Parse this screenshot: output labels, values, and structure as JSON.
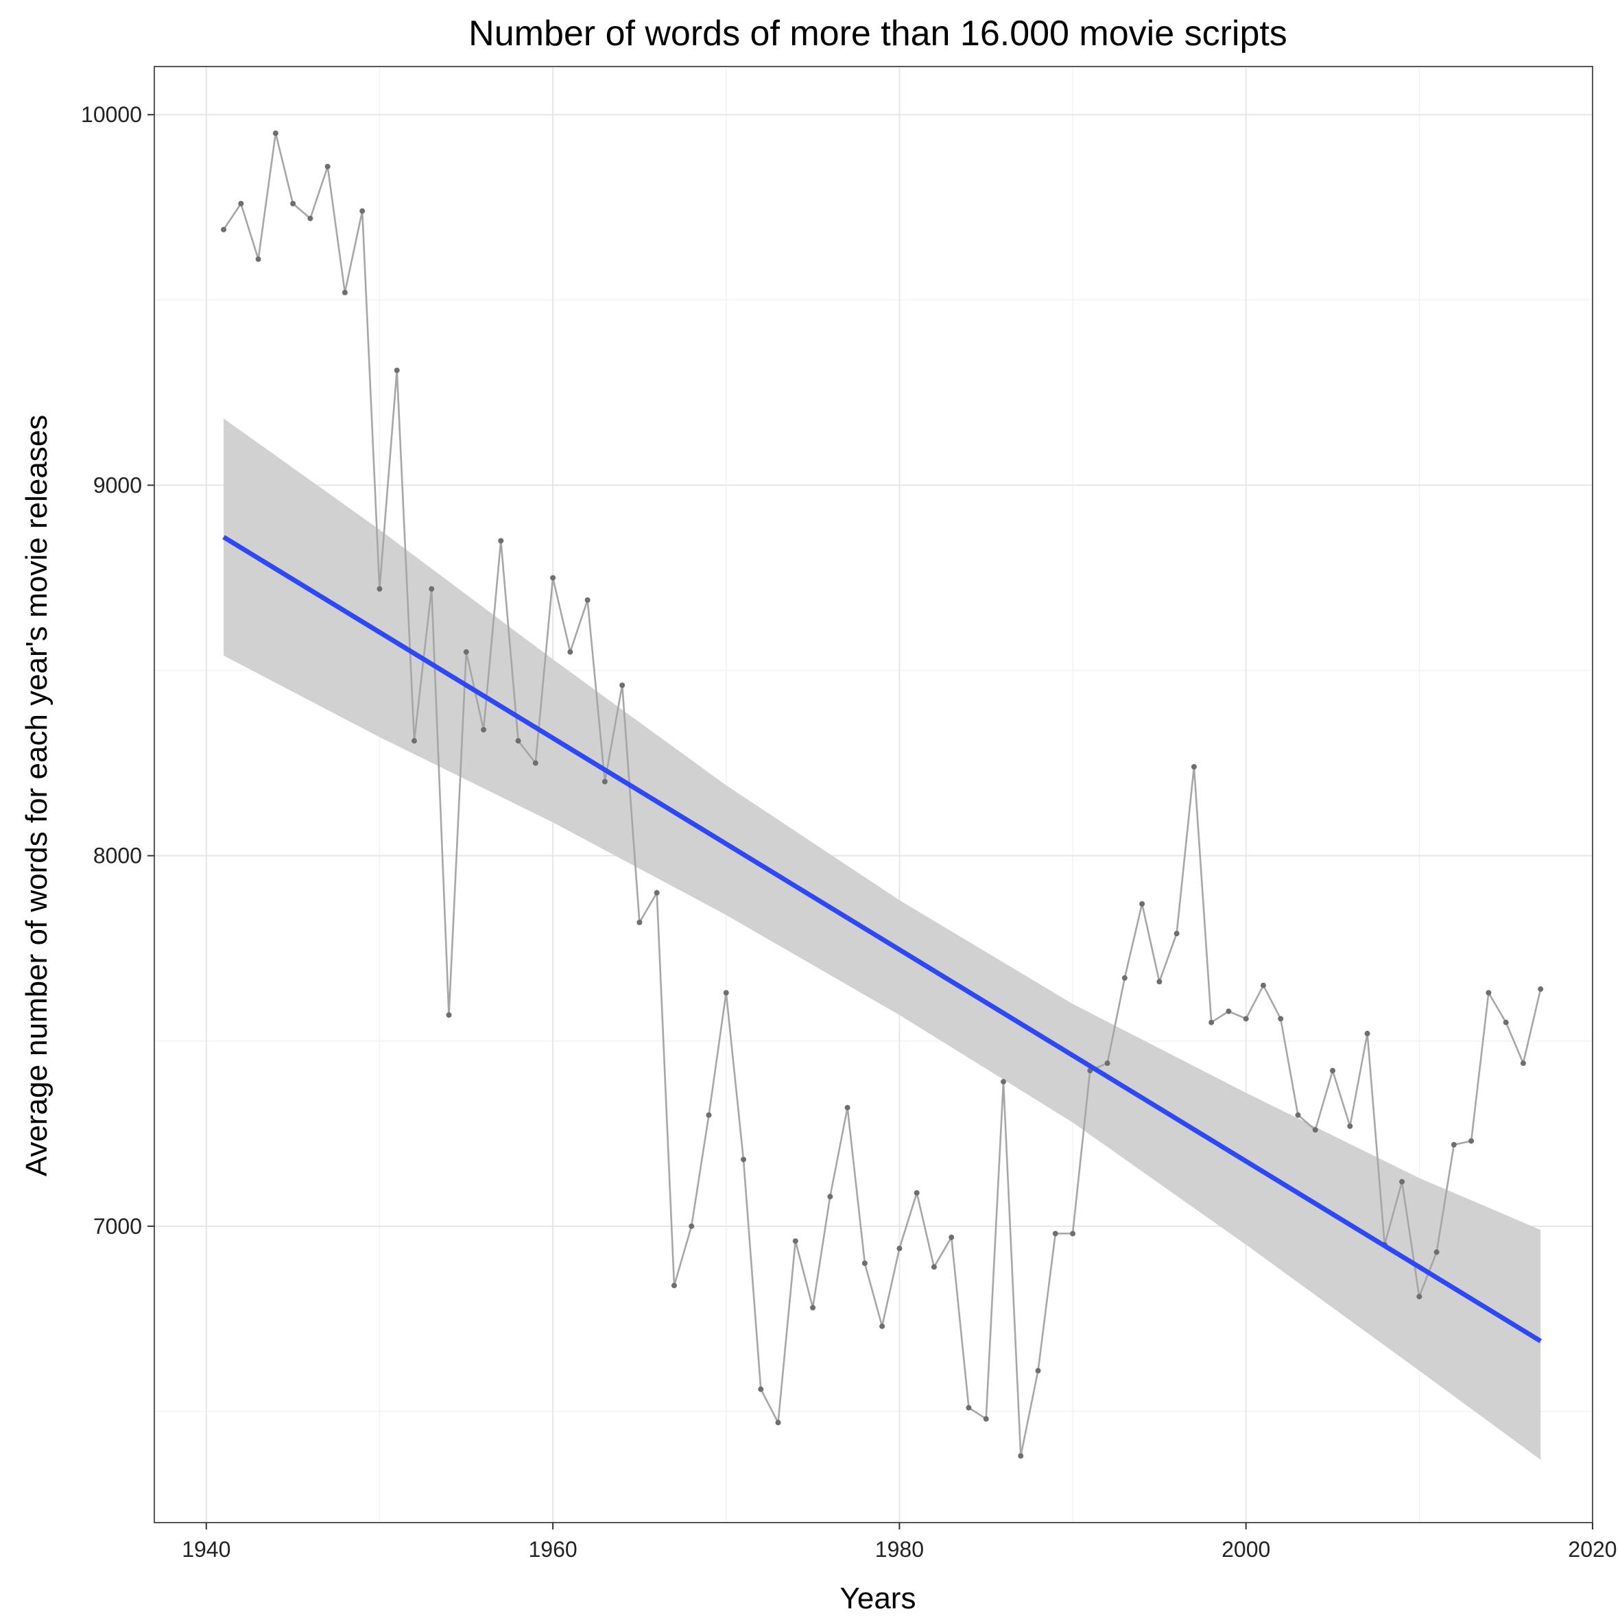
{
  "chart_data": {
    "type": "line",
    "title": "Number of words of more than 16.000 movie scripts",
    "xlabel": "Years",
    "ylabel": "Average number of words for each year's movie releases",
    "xlim": [
      1937,
      2020
    ],
    "ylim": [
      6200,
      10130
    ],
    "x_ticks": [
      1940,
      1960,
      1980,
      2000,
      2020
    ],
    "y_ticks": [
      7000,
      8000,
      9000,
      10000
    ],
    "grid": true,
    "legend": "none",
    "colors": {
      "series": "#a6a6a6",
      "points": "#6e6e6e",
      "trend": "#2e48f5",
      "ribbon": "#cfcfcf",
      "grid": "#e6e6e6",
      "panel_border": "#555555"
    },
    "series": [
      {
        "x": [
          1941,
          1942,
          1943,
          1944,
          1945,
          1946,
          1947,
          1948,
          1949,
          1950,
          1951,
          1952,
          1953,
          1954,
          1955,
          1956,
          1957,
          1958,
          1959,
          1960,
          1961,
          1962,
          1963,
          1964,
          1965,
          1966,
          1967,
          1968,
          1969,
          1970,
          1971,
          1972,
          1973,
          1974,
          1975,
          1976,
          1977,
          1978,
          1979,
          1980,
          1981,
          1982,
          1983,
          1984,
          1985,
          1986,
          1987,
          1988,
          1989,
          1990,
          1991,
          1992,
          1993,
          1994,
          1995,
          1996,
          1997,
          1998,
          1999,
          2000,
          2001,
          2002,
          2003,
          2004,
          2005,
          2006,
          2007,
          2008,
          2009,
          2010,
          2011,
          2012,
          2013,
          2014,
          2015,
          2016,
          2017
        ],
        "y": [
          9690,
          9760,
          9610,
          9950,
          9760,
          9720,
          9860,
          9520,
          9740,
          8720,
          9310,
          8310,
          8720,
          7570,
          8550,
          8340,
          8850,
          8310,
          8250,
          8750,
          8550,
          8690,
          8200,
          8460,
          7820,
          7900,
          6840,
          7000,
          7300,
          7630,
          7180,
          6560,
          6470,
          6960,
          6780,
          7080,
          7320,
          6900,
          6730,
          6940,
          7090,
          6890,
          6970,
          6510,
          6480,
          7390,
          6380,
          6610,
          6980,
          6980,
          7420,
          7440,
          7670,
          7870,
          7660,
          7790,
          8240,
          7550,
          7580,
          7560,
          7650,
          7560,
          7300,
          7260,
          7420,
          7270,
          7520,
          6950,
          7120,
          6810,
          6930,
          7220,
          7230,
          7630,
          7550,
          7440,
          7640
        ]
      }
    ],
    "trend": {
      "x": [
        1941,
        2017
      ],
      "y": [
        8860,
        6690
      ],
      "ribbon": {
        "x": [
          1941,
          1950,
          1960,
          1970,
          1980,
          1990,
          2000,
          2010,
          2017
        ],
        "lower": [
          8540,
          8320,
          8090,
          7840,
          7570,
          7280,
          6950,
          6610,
          6370
        ],
        "upper": [
          9180,
          8880,
          8530,
          8190,
          7880,
          7600,
          7360,
          7130,
          6990
        ]
      }
    }
  }
}
